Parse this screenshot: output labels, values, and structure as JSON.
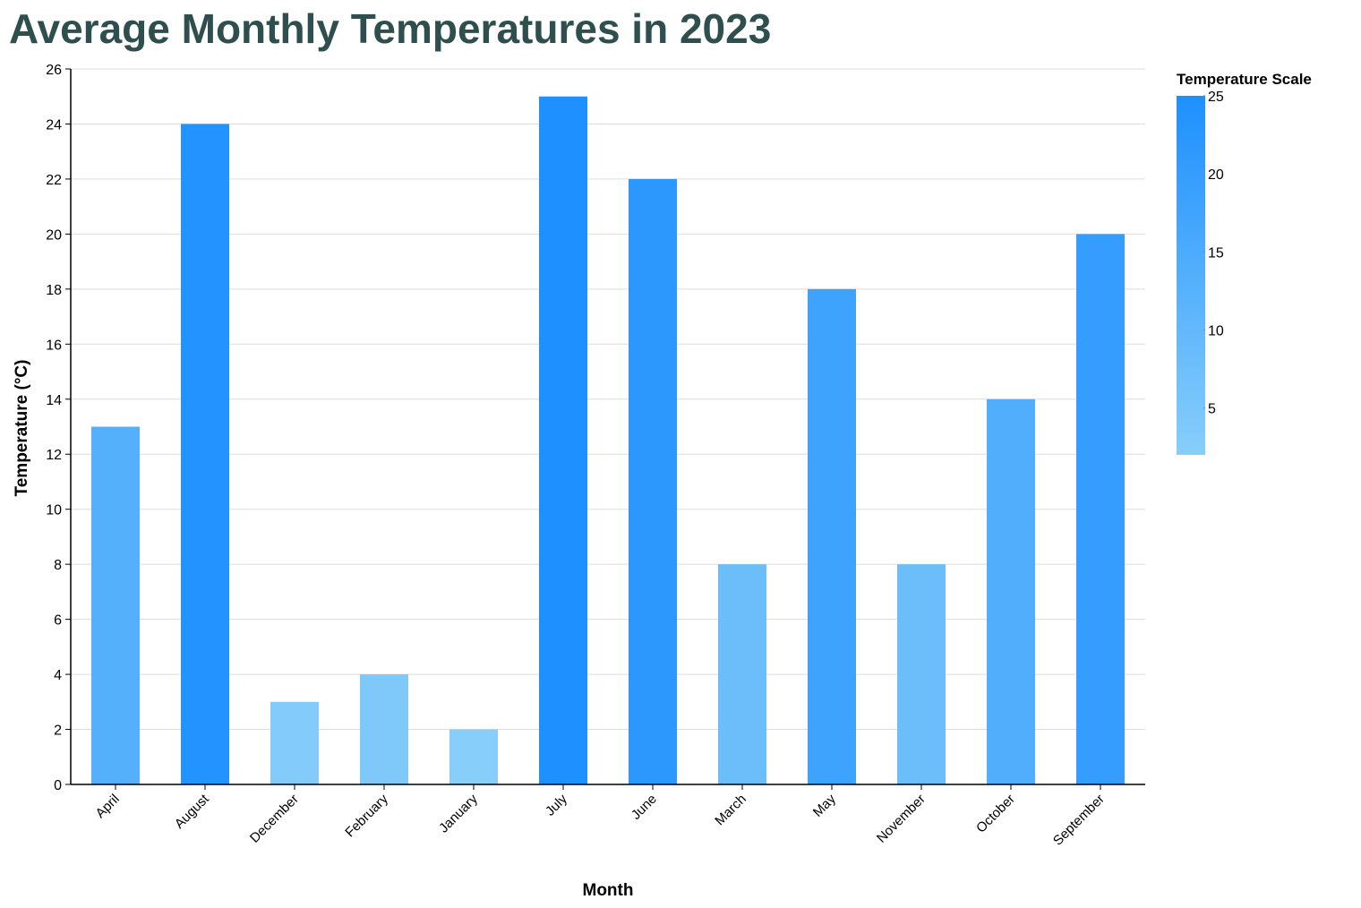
{
  "chart_data": {
    "type": "bar",
    "title": "Average Monthly Temperatures in 2023",
    "xlabel": "Month",
    "ylabel": "Temperature (°C)",
    "categories": [
      "April",
      "August",
      "December",
      "February",
      "January",
      "July",
      "June",
      "March",
      "May",
      "November",
      "October",
      "September"
    ],
    "values": [
      13,
      24,
      3,
      4,
      2,
      25,
      22,
      8,
      18,
      8,
      14,
      20
    ],
    "ylim": [
      0,
      26
    ],
    "yticks": [
      0,
      2,
      4,
      6,
      8,
      10,
      12,
      14,
      16,
      18,
      20,
      22,
      24,
      26
    ],
    "grid": true,
    "legend": {
      "title": "Temperature Scale",
      "placement": "right",
      "domain": [
        2,
        25
      ],
      "ticks": [
        5,
        10,
        15,
        20,
        25
      ],
      "color_low": "#87cefa",
      "color_high": "#1e90ff"
    },
    "colors": {
      "title": "#2f4f4f",
      "grid": "#dddddd",
      "axis": "#000000"
    }
  }
}
